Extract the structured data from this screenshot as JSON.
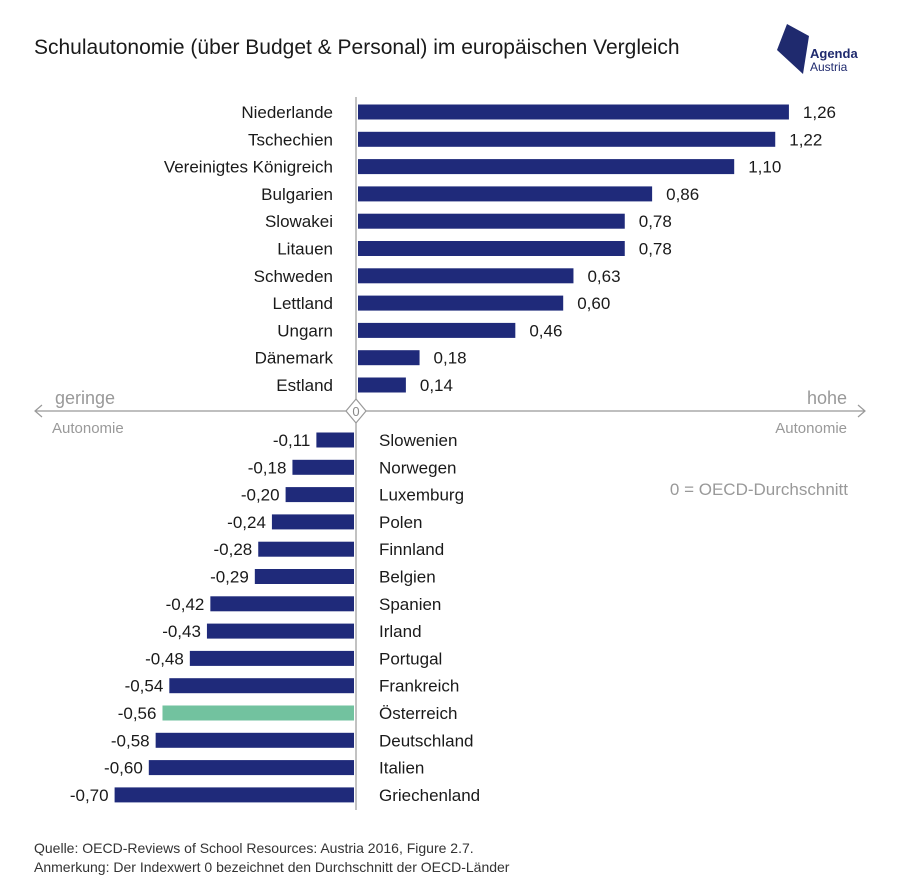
{
  "title": "Schulautonomie (über Budget & Personal) im europäischen Vergleich",
  "logo": {
    "line1": "Agenda",
    "line2": "Austria",
    "color": "#1f2a6e"
  },
  "axis": {
    "left_label_top": "geringe",
    "left_label_bottom": "Autonomie",
    "right_label_top": "hohe",
    "right_label_bottom": "Autonomie",
    "zero_label": "0",
    "note": "0 = OECD-Durchschnitt"
  },
  "footer": {
    "source": "Quelle: OECD-Reviews of School Resources: Austria 2016, Figure 2.7.",
    "note": "Anmerkung: Der Indexwert 0 bezeichnet den Durchschnitt der OECD-Länder"
  },
  "colors": {
    "bar": "#1f2a7a",
    "highlight": "#72c29f",
    "axis": "#999999"
  },
  "chart_data": {
    "type": "bar",
    "orientation": "horizontal",
    "highlight": "Österreich",
    "categories": [
      "Niederlande",
      "Tschechien",
      "Vereinigtes Königreich",
      "Bulgarien",
      "Slowakei",
      "Litauen",
      "Schweden",
      "Lettland",
      "Ungarn",
      "Dänemark",
      "Estland",
      "Slowenien",
      "Norwegen",
      "Luxemburg",
      "Polen",
      "Finnland",
      "Belgien",
      "Spanien",
      "Irland",
      "Portugal",
      "Frankreich",
      "Österreich",
      "Deutschland",
      "Italien",
      "Griechenland"
    ],
    "values": [
      1.26,
      1.22,
      1.1,
      0.86,
      0.78,
      0.78,
      0.63,
      0.6,
      0.46,
      0.18,
      0.14,
      -0.11,
      -0.18,
      -0.2,
      -0.24,
      -0.28,
      -0.29,
      -0.42,
      -0.43,
      -0.48,
      -0.54,
      -0.56,
      -0.58,
      -0.6,
      -0.7
    ],
    "value_labels": [
      "1,26",
      "1,22",
      "1,10",
      "0,86",
      "0,78",
      "0,78",
      "0,63",
      "0,60",
      "0,46",
      "0,18",
      "0,14",
      "-0,11",
      "-0,18",
      "-0,20",
      "-0,24",
      "-0,28",
      "-0,29",
      "-0,42",
      "-0,43",
      "-0,48",
      "-0,54",
      "-0,56",
      "-0,58",
      "-0,60",
      "-0,70"
    ]
  }
}
